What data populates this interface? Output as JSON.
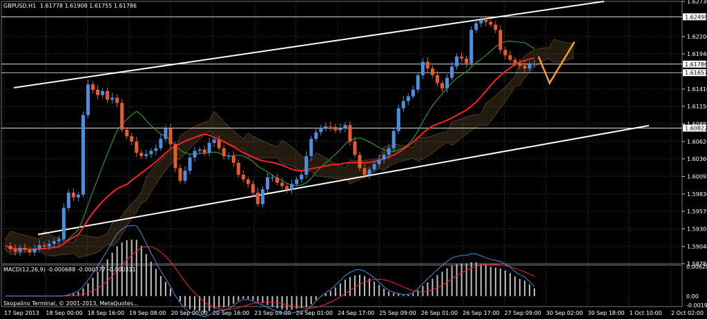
{
  "main_header": {
    "symbol_label": "GBPUSD,H1",
    "ohlc": "1.61778 1.61908 1.61755 1.61786"
  },
  "macd_header": "MACD(12,26,9) -0.000688 -0.000377 -0.000311",
  "footer_text": "Skopalino Terminal, © 2001-2013, MetaQuotes...",
  "colors": {
    "background": "#000000",
    "grid": "#606060",
    "candle_up": "#4a90e2",
    "candle_down": "#e85a2b",
    "ma_red": "#ff2020",
    "ma_green": "#2a9a2a",
    "ichimoku_cloud": "#c8935a",
    "channel_lines": "#ffffff",
    "projection": "#f5a023",
    "price_box": "#ffffff",
    "macd_hist": "#c0c0c0",
    "macd_signal": "#ff2020",
    "macd_line": "#4a90e2"
  },
  "chart_data": [
    {
      "type": "candlestick",
      "symbol": "GBPUSD",
      "timeframe": "H1",
      "y_ticks": [
        "1.62730",
        "1.62200",
        "1.61940",
        "1.61410",
        "1.61150",
        "1.60885",
        "1.60620",
        "1.60360",
        "1.60095",
        "1.59830",
        "1.59570",
        "1.59305",
        "1.59040",
        "1.58780"
      ],
      "price_labels_boxed": [
        "1.62498",
        "1.61786",
        "1.61657",
        "1.60822"
      ],
      "x_ticks": [
        "17 Sep 2013",
        "18 Sep 00:00",
        "18 Sep 16:00",
        "19 Sep 08:00",
        "20 Sep 00:00",
        "20 Sep 16:00",
        "23 Sep 09:00",
        "24 Sep 01:00",
        "24 Sep 17:00",
        "25 Sep 09:00",
        "26 Sep 01:00",
        "26 Sep 17:00",
        "27 Sep 09:00",
        "30 Sep 02:00",
        "30 Sep 18:00",
        "1 Oct 10:00",
        "2 Oct 02:00"
      ],
      "ylim": [
        1.5878,
        1.6273
      ],
      "close_path": [
        1.5905,
        1.59,
        1.5896,
        1.5902,
        1.5899,
        1.5895,
        1.5901,
        1.5906,
        1.5904,
        1.5908,
        1.5912,
        1.5915,
        1.5962,
        1.5985,
        1.5978,
        1.5982,
        1.6102,
        1.6148,
        1.614,
        1.6132,
        1.6138,
        1.6125,
        1.6128,
        1.612,
        1.608,
        1.607,
        1.6062,
        1.6045,
        1.604,
        1.6043,
        1.6048,
        1.6052,
        1.6066,
        1.6082,
        1.6058,
        1.6022,
        1.6003,
        1.6018,
        1.6038,
        1.6048,
        1.605,
        1.6045,
        1.606,
        1.6065,
        1.6052,
        1.604,
        1.604,
        1.603,
        1.6012,
        1.6005,
        1.5998,
        1.5985,
        1.5968,
        1.599,
        1.6008,
        1.6008,
        1.6,
        1.5995,
        1.599,
        1.5998,
        1.6005,
        1.6012,
        1.604,
        1.6066,
        1.6076,
        1.6083,
        1.6085,
        1.6084,
        1.6079,
        1.6082,
        1.6087,
        1.6062,
        1.6042,
        1.6022,
        1.6012,
        1.602,
        1.6028,
        1.6035,
        1.6042,
        1.6052,
        1.6078,
        1.6112,
        1.6123,
        1.613,
        1.614,
        1.6162,
        1.6182,
        1.6172,
        1.6162,
        1.615,
        1.6142,
        1.6158,
        1.6175,
        1.619,
        1.6187,
        1.618,
        1.623,
        1.624,
        1.6245,
        1.6242,
        1.6238,
        1.623,
        1.62,
        1.6192,
        1.6185,
        1.618,
        1.6176,
        1.6172,
        1.6178,
        1.6179
      ],
      "projection": [
        [
          1.619,
          1.615
        ],
        [
          1.615,
          1.6212
        ]
      ],
      "channel": {
        "upper": [
          1.6143,
          1.6273
        ],
        "lower": [
          1.5922,
          1.6086
        ]
      },
      "horizontal_levels": [
        1.62498,
        1.61786,
        1.61657,
        1.60822
      ]
    },
    {
      "type": "bar",
      "name": "MACD(12,26,9)",
      "values": [
        -0.000688,
        -0.000377,
        -0.000311
      ],
      "y_ticks": [
        "0.006206",
        "0.00",
        "-0.001917"
      ]
    }
  ]
}
